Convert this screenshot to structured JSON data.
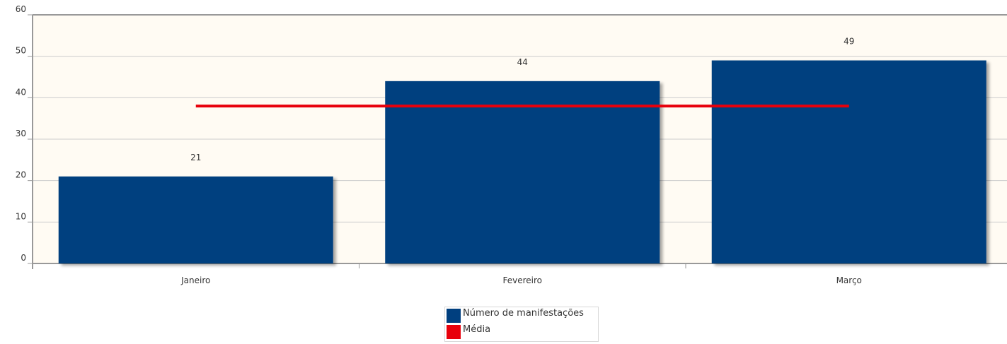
{
  "chart_data": {
    "type": "bar",
    "categories": [
      "Janeiro",
      "Fevereiro",
      "Março"
    ],
    "series": [
      {
        "name": "Número de manifestações",
        "values": [
          21,
          44,
          49
        ],
        "color": "#003f7f"
      },
      {
        "name": "Média",
        "type": "line",
        "values": [
          38,
          38,
          38
        ],
        "color": "#e8000b"
      }
    ],
    "data_labels": [
      "21",
      "44",
      "49"
    ],
    "ylim": [
      0,
      60
    ],
    "yticks": [
      0,
      10,
      20,
      30,
      40,
      50,
      60
    ],
    "xlabel": "",
    "ylabel": "",
    "grid": true,
    "legend_position": "bottom-center",
    "plot_background": "#fffbf3"
  }
}
